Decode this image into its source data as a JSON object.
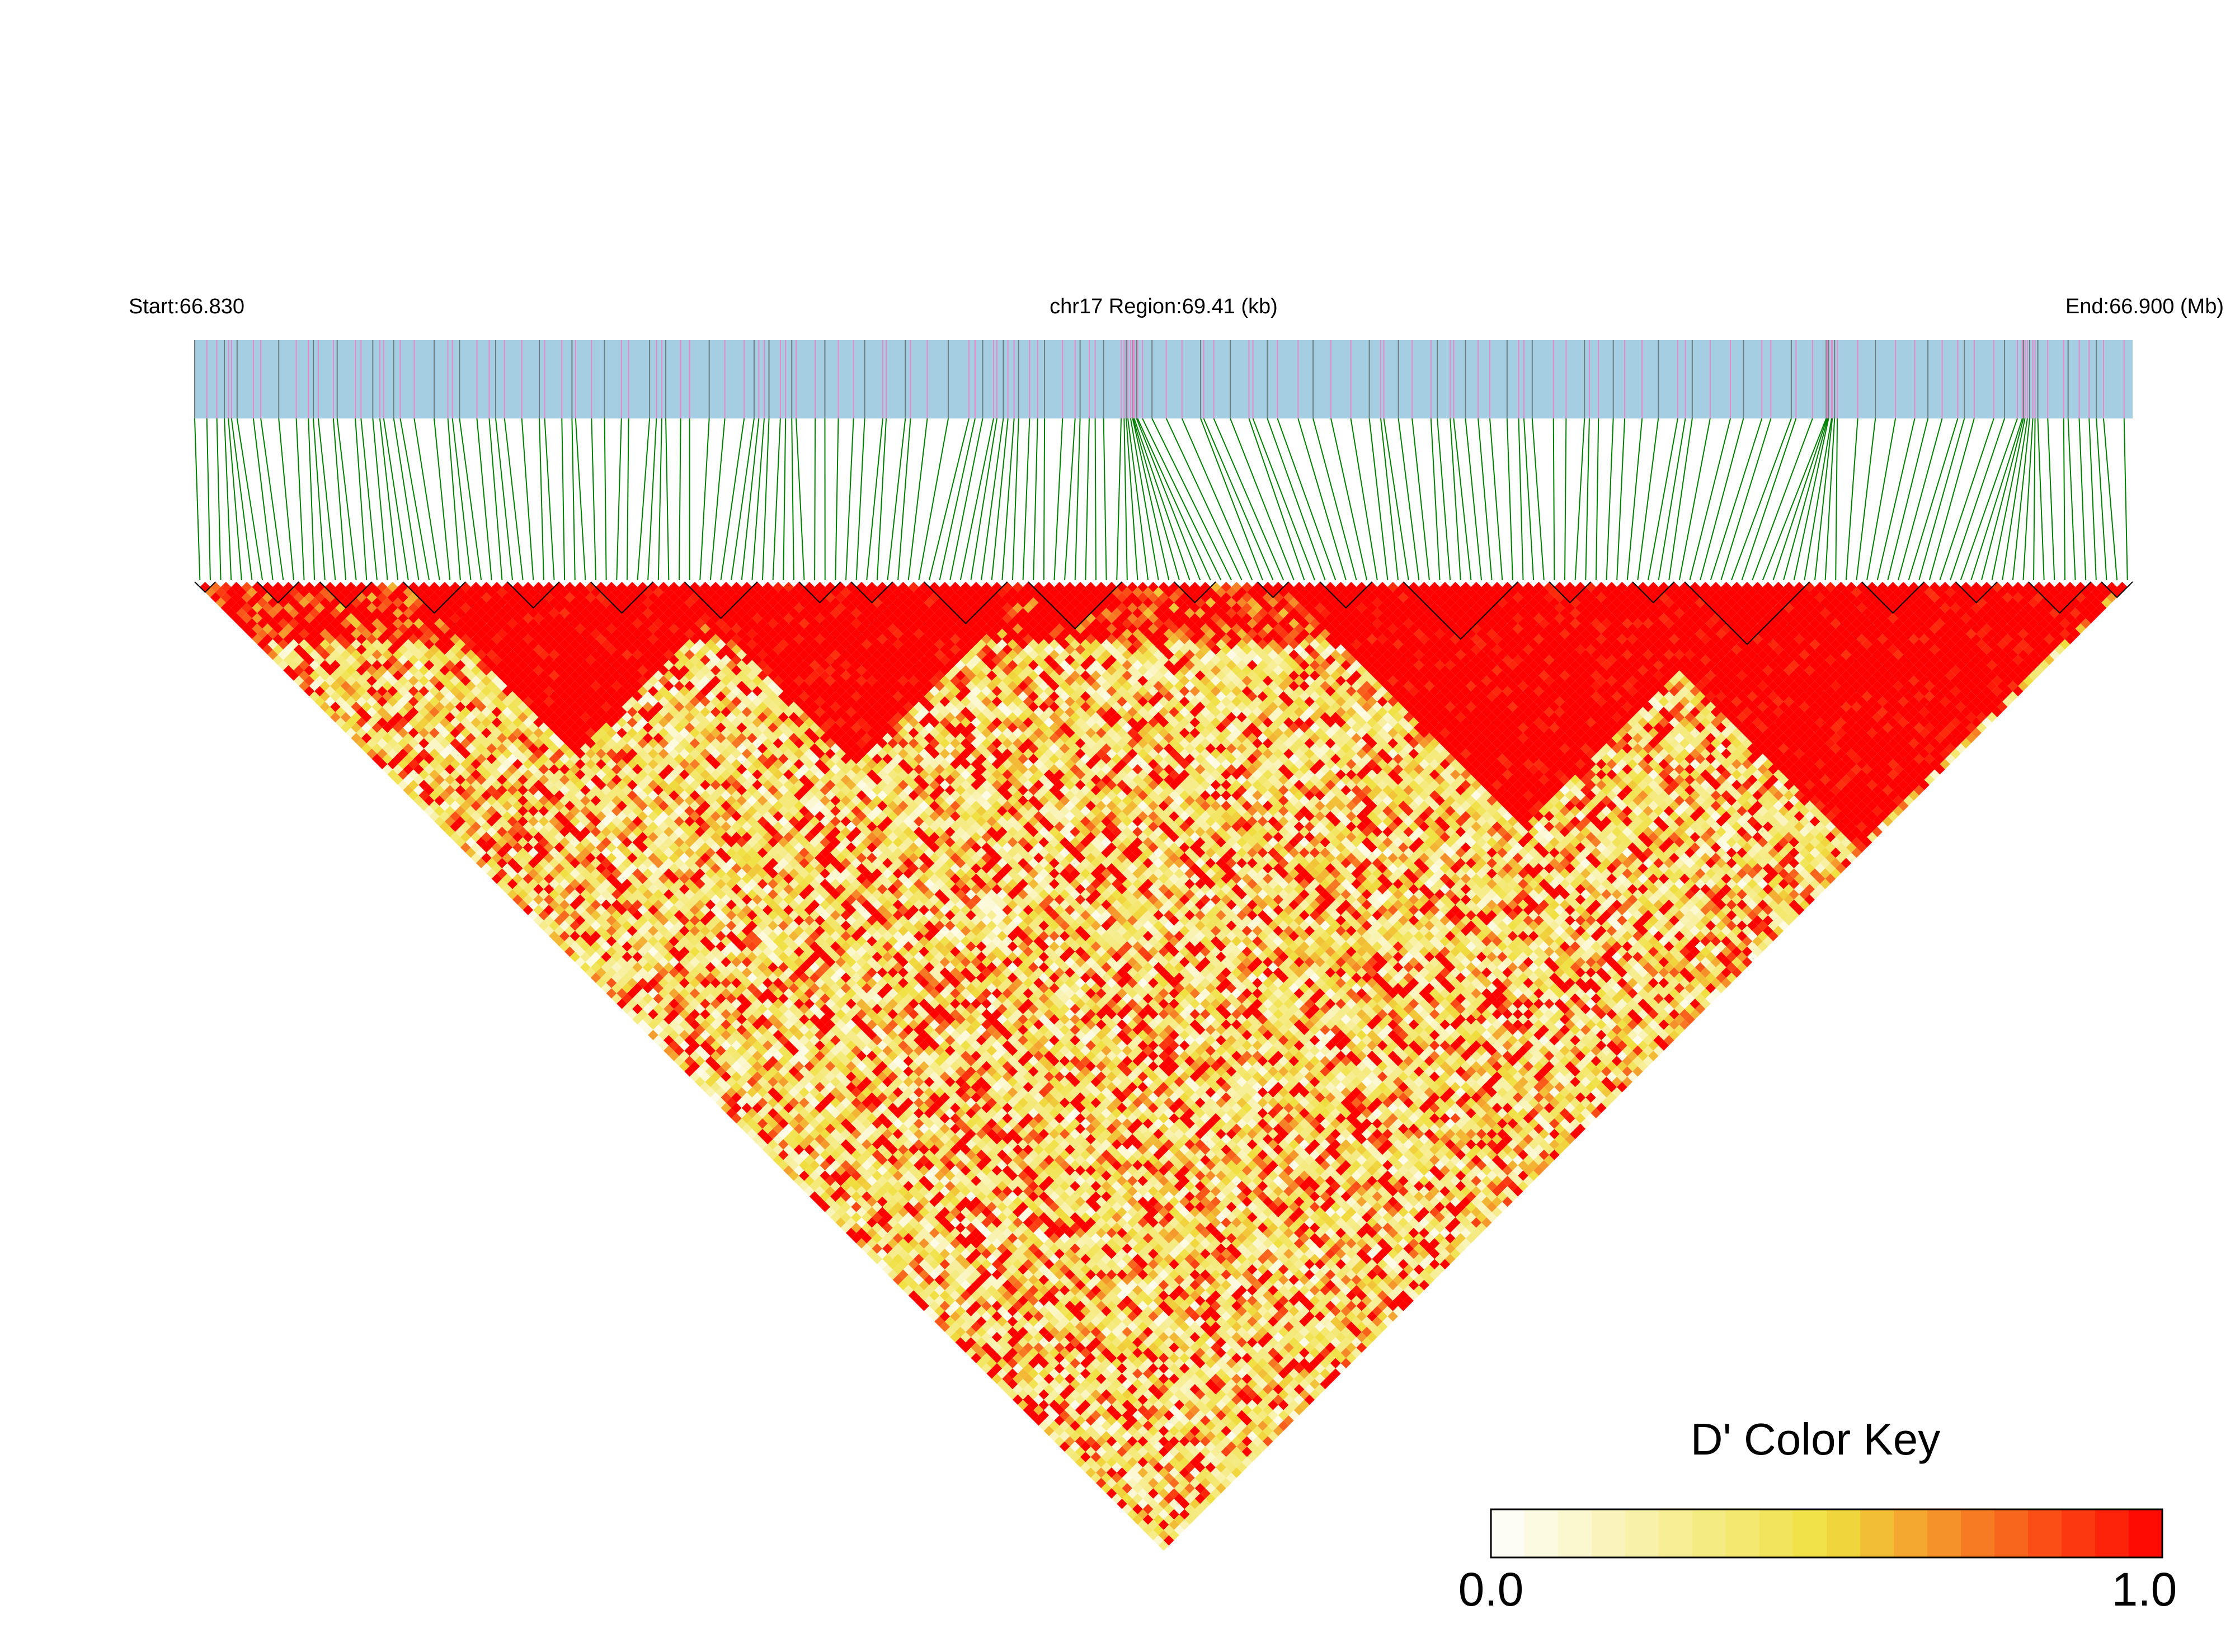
{
  "header": {
    "start_label": "Start:66.830",
    "region_label": "chr17 Region:69.41 (kb)",
    "end_label": "End:66.900 (Mb)"
  },
  "colors": {
    "track_fill": "#a6cee3",
    "snp_tick_pink": "#e58ac9",
    "snp_tick_gray": "#6b7f80",
    "connector": "#008000",
    "block_outline": "#000000",
    "key_low": "#ffffff",
    "key_mid": "#f0e040",
    "key_high": "#ff0000"
  },
  "chart_data": {
    "type": "heatmap",
    "chromosome": "chr17",
    "region_start_mb": 66.83,
    "region_end_mb": 66.9,
    "region_length_kb": 69.41,
    "n_snps": 186,
    "statistic": "D'",
    "value_range": [
      0.0,
      1.0
    ],
    "ld_blocks_snp_index": [
      [
        0,
        1
      ],
      [
        6,
        9
      ],
      [
        12,
        16
      ],
      [
        20,
        25
      ],
      [
        30,
        34
      ],
      [
        38,
        43
      ],
      [
        47,
        53
      ],
      [
        58,
        61
      ],
      [
        63,
        66
      ],
      [
        70,
        77
      ],
      [
        80,
        88
      ],
      [
        94,
        97
      ],
      [
        102,
        104
      ],
      [
        108,
        112
      ],
      [
        116,
        126
      ],
      [
        130,
        133
      ],
      [
        138,
        141
      ],
      [
        143,
        154
      ],
      [
        160,
        165
      ],
      [
        169,
        172
      ],
      [
        176,
        181
      ],
      [
        183,
        185
      ]
    ],
    "high_ld_regions_snp_index": [
      [
        20,
        52
      ],
      [
        46,
        80
      ],
      [
        104,
        150
      ],
      [
        134,
        184
      ]
    ],
    "legend": {
      "title": "D' Color Key",
      "min_label": "0.0",
      "max_label": "1.0",
      "n_bins": 20
    }
  }
}
